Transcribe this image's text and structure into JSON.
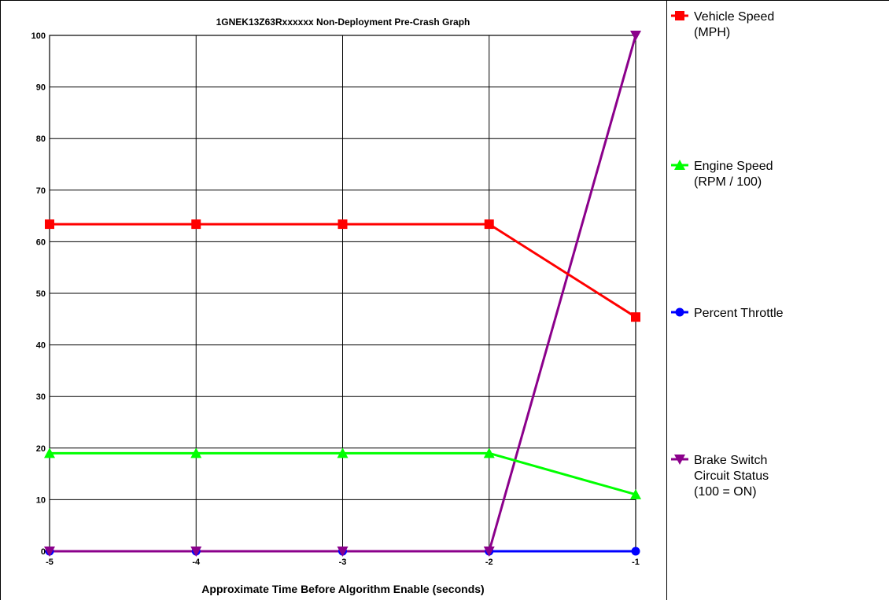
{
  "chart_data": {
    "type": "line",
    "title": "1GNEK13Z63Rxxxxxx Non-Deployment Pre-Crash Graph",
    "xlabel": "Approximate Time Before Algorithm Enable (seconds)",
    "ylabel": "",
    "x": [
      -5,
      -4,
      -3,
      -2,
      -1
    ],
    "x_tick_labels": [
      "-5",
      "-4",
      "-3",
      "-2",
      "-1"
    ],
    "xlim": [
      -5,
      -1
    ],
    "ylim": [
      0,
      100
    ],
    "y_ticks": [
      0,
      10,
      20,
      30,
      40,
      50,
      60,
      70,
      80,
      90,
      100
    ],
    "y_tick_labels": [
      "0",
      "10",
      "20",
      "30",
      "40",
      "50",
      "60",
      "70",
      "80",
      "90",
      "100"
    ],
    "grid": true,
    "legend_position": "right",
    "series": [
      {
        "name": "Vehicle Speed (MPH)",
        "label_lines": [
          "Vehicle Speed",
          "(MPH)"
        ],
        "color": "#ff0000",
        "marker": "square",
        "values": [
          63.4,
          63.4,
          63.4,
          63.4,
          45.4
        ]
      },
      {
        "name": "Engine Speed (RPM / 100)",
        "label_lines": [
          "Engine Speed",
          "(RPM / 100)"
        ],
        "color": "#00ff00",
        "marker": "triangle-up",
        "values": [
          19,
          19,
          19,
          19,
          11
        ]
      },
      {
        "name": "Percent Throttle",
        "label_lines": [
          "Percent Throttle"
        ],
        "color": "#0000ff",
        "marker": "circle",
        "values": [
          0,
          0,
          0,
          0,
          0
        ]
      },
      {
        "name": "Brake Switch Circuit Status (100 = ON)",
        "label_lines": [
          "Brake Switch",
          "Circuit Status",
          "(100 = ON)"
        ],
        "color": "#8b008b",
        "marker": "triangle-down",
        "values": [
          0,
          0,
          0,
          0,
          100
        ]
      }
    ]
  }
}
